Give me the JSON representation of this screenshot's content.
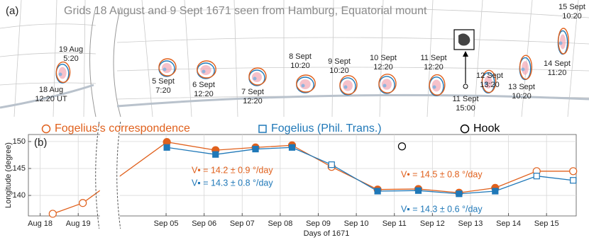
{
  "panel_a": {
    "label": "(a)",
    "title": "Grids 18 August and 9 Sept 1671 seen from Hamburg, Equatorial mount",
    "labels": [
      {
        "lines": [
          "19 Aug",
          "5:20"
        ]
      },
      {
        "lines": [
          "18 Aug",
          "12:20 UT"
        ]
      },
      {
        "lines": [
          "5 Sept",
          "7:20"
        ]
      },
      {
        "lines": [
          "6 Sept",
          "12:20"
        ]
      },
      {
        "lines": [
          "7 Sept",
          "12:20"
        ]
      },
      {
        "lines": [
          "8 Sept",
          "10:20"
        ]
      },
      {
        "lines": [
          "9 Sept",
          "10:20"
        ]
      },
      {
        "lines": [
          "10 Sept",
          "12:20"
        ]
      },
      {
        "lines": [
          "11 Sept",
          "12:20"
        ]
      },
      {
        "lines": [
          "11 Sept",
          "15:00"
        ]
      },
      {
        "lines": [
          "12 Sept",
          "13:20"
        ]
      },
      {
        "lines": [
          "13 Sept",
          "10:20"
        ]
      },
      {
        "lines": [
          "14 Sept",
          "11:20"
        ]
      },
      {
        "lines": [
          "15 Sept",
          "10:20"
        ]
      }
    ]
  },
  "chart_data": {
    "type": "line",
    "panel_label": "(b)",
    "x_label": "Days of 1671",
    "y_label": "Longitude (degree)",
    "xlim": [
      229.69,
      258.78
    ],
    "xbreak": [
      231.55,
      246.8
    ],
    "ylim": [
      136.2,
      151.3
    ],
    "yticks": [
      140,
      145,
      150
    ],
    "xticks": [
      {
        "value": 230,
        "label": "Aug 18"
      },
      {
        "value": 231,
        "label": "Aug 19"
      },
      {
        "value": 248,
        "label": "Sep 05"
      },
      {
        "value": 249,
        "label": "Sep 06"
      },
      {
        "value": 250,
        "label": "Sep 07"
      },
      {
        "value": 251,
        "label": "Sep 08"
      },
      {
        "value": 252,
        "label": "Sep 09"
      },
      {
        "value": 253,
        "label": "Sep 10"
      },
      {
        "value": 254,
        "label": "Sep 11"
      },
      {
        "value": 255,
        "label": "Sep 12"
      },
      {
        "value": 256,
        "label": "Sep 13"
      },
      {
        "value": 257,
        "label": "Sep 14"
      },
      {
        "value": 258,
        "label": "Sep 15"
      }
    ],
    "grid": true,
    "series": [
      {
        "name": "Fogelius’s correspondence",
        "color": "#e0601c",
        "marker": "circle",
        "line": true,
        "x": [
          230.33,
          231.12,
          248.02,
          249.3,
          250.35,
          251.31,
          252.35,
          253.56,
          254.63,
          255.7,
          256.65,
          257.74,
          258.7
        ],
        "values": [
          136.6,
          138.6,
          149.9,
          148.4,
          148.9,
          149.3,
          145.3,
          141.1,
          141.2,
          140.5,
          141.4,
          144.5,
          144.5
        ],
        "filled": [
          false,
          false,
          true,
          true,
          true,
          true,
          false,
          true,
          true,
          true,
          true,
          false,
          false
        ]
      },
      {
        "name": "Fogelius (Phil. Trans.)",
        "color": "#1f78b8",
        "marker": "square",
        "line": true,
        "x": [
          248.02,
          249.3,
          250.35,
          251.31,
          252.35,
          253.56,
          254.63,
          255.7,
          256.65,
          257.74,
          258.7
        ],
        "values": [
          148.9,
          147.6,
          148.6,
          148.9,
          145.7,
          140.8,
          140.9,
          140.3,
          140.8,
          143.6,
          142.8
        ],
        "filled": [
          true,
          true,
          true,
          true,
          false,
          true,
          true,
          true,
          true,
          false,
          false
        ]
      },
      {
        "name": "Hook",
        "color": "#000000",
        "marker": "circle",
        "line": false,
        "x": [
          254.2
        ],
        "values": [
          149.1
        ],
        "filled": [
          false
        ]
      }
    ],
    "annotations": [
      {
        "text": "V• = 14.2 ± 0.9 °/day",
        "color": "#e0601c"
      },
      {
        "text": "V▪ = 14.3 ± 0.8 °/day",
        "color": "#1f78b8"
      },
      {
        "text": "V• = 14.5 ± 0.8 °/day",
        "color": "#e0601c"
      },
      {
        "text": "V▪ = 14.3 ± 0.6 °/day",
        "color": "#1f78b8"
      }
    ]
  }
}
